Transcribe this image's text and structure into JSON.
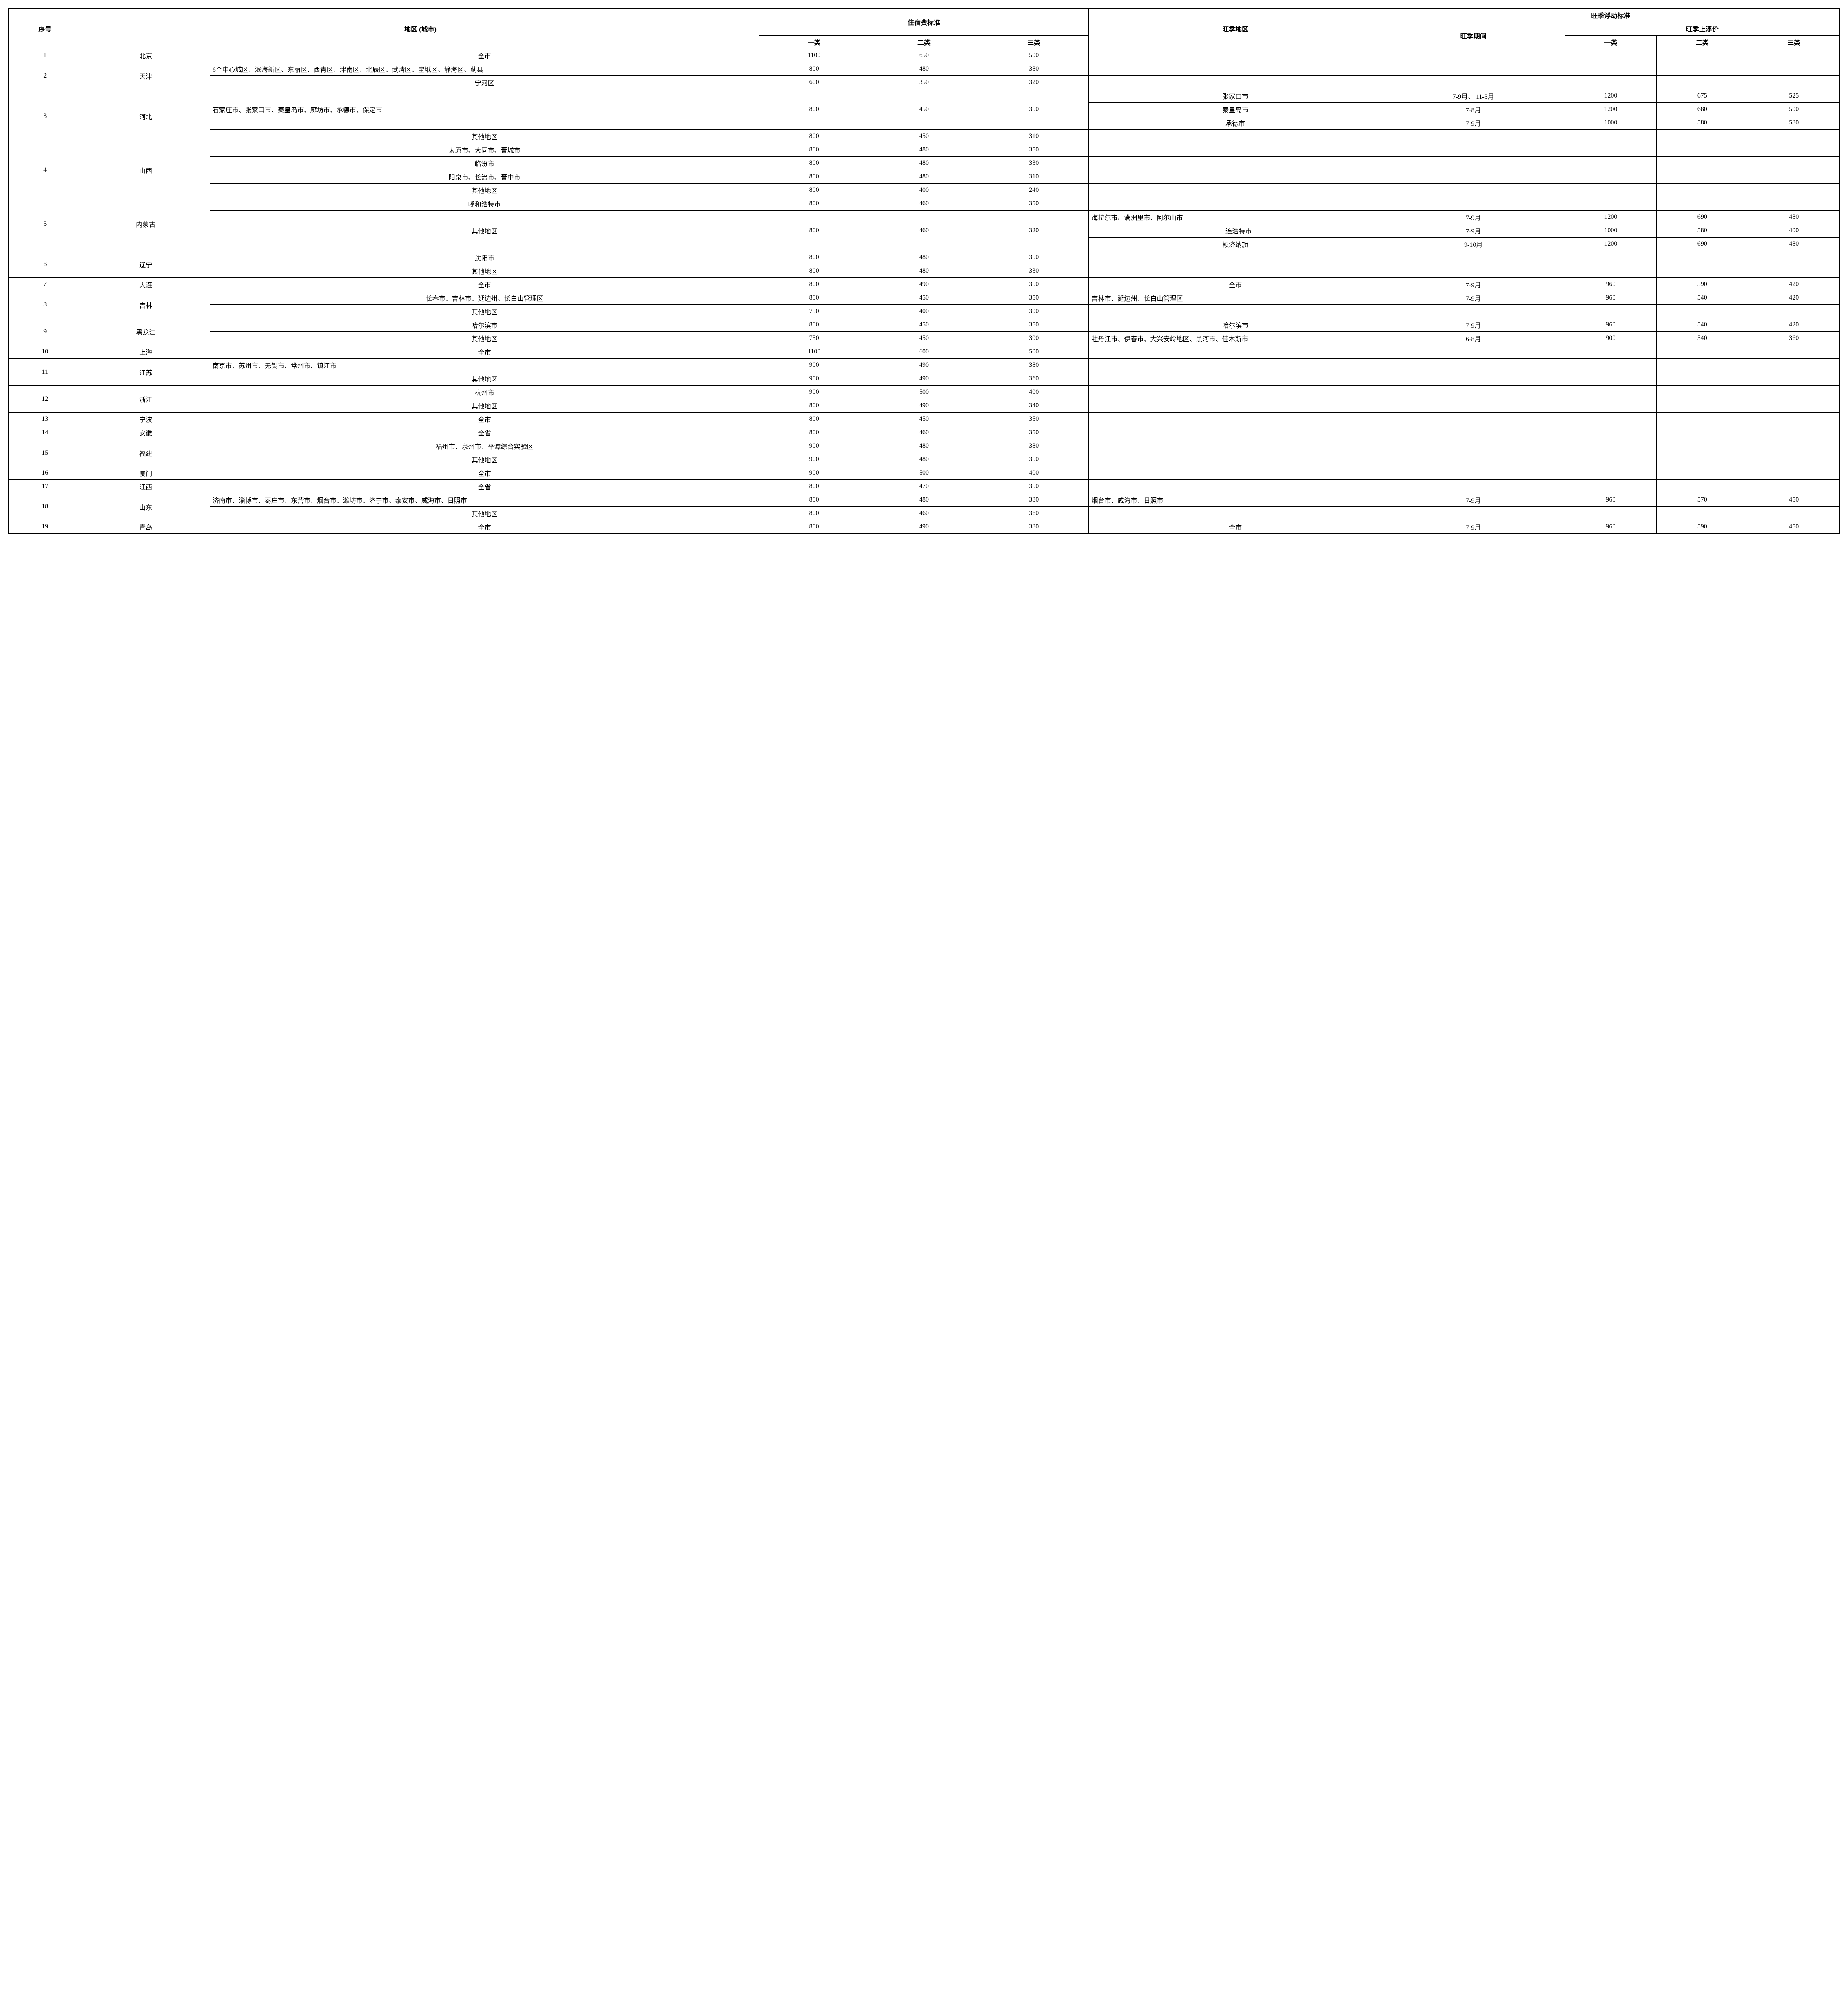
{
  "headers": {
    "seq": "序号",
    "region": "地区\n(城市)",
    "lodging": "住宿费标准",
    "c1": "一类",
    "c2": "二类",
    "c3": "三类",
    "peak_region": "旺季地区",
    "peak_standard": "旺季浮动标准",
    "peak_period": "旺季期间",
    "peak_price": "旺季上浮价",
    "p1": "一类",
    "p2": "二类",
    "p3": "三类"
  },
  "rows": {
    "r1": {
      "seq": "1",
      "prov": "北京",
      "city": "全市",
      "c1": "1100",
      "c2": "650",
      "c3": "500",
      "peak": "",
      "period": "",
      "p1": "",
      "p2": "",
      "p3": ""
    },
    "r2a": {
      "seq": "2",
      "prov": "天津",
      "city": "6个中心城区、滨海新区、东丽区、西青区、津南区、北辰区、武清区、宝坻区、静海区、蓟县",
      "c1": "800",
      "c2": "480",
      "c3": "380",
      "peak": "",
      "period": "",
      "p1": "",
      "p2": "",
      "p3": ""
    },
    "r2b": {
      "city": "宁河区",
      "c1": "600",
      "c2": "350",
      "c3": "320",
      "peak": "",
      "period": "",
      "p1": "",
      "p2": "",
      "p3": ""
    },
    "r3a": {
      "seq": "3",
      "prov": "河北",
      "city": "石家庄市、张家口市、秦皇岛市、廊坊市、承德市、保定市",
      "c1": "800",
      "c2": "450",
      "c3": "350",
      "peak": "张家口市",
      "period": "7-9月、\n11-3月",
      "p1": "1200",
      "p2": "675",
      "p3": "525"
    },
    "r3b": {
      "peak": "秦皇岛市",
      "period": "7-8月",
      "p1": "1200",
      "p2": "680",
      "p3": "500"
    },
    "r3c": {
      "peak": "承德市",
      "period": "7-9月",
      "p1": "1000",
      "p2": "580",
      "p3": "580"
    },
    "r3d": {
      "city": "其他地区",
      "c1": "800",
      "c2": "450",
      "c3": "310",
      "peak": "",
      "period": "",
      "p1": "",
      "p2": "",
      "p3": ""
    },
    "r4a": {
      "seq": "4",
      "prov": "山西",
      "city": "太原市、大同市、晋城市",
      "c1": "800",
      "c2": "480",
      "c3": "350",
      "peak": "",
      "period": "",
      "p1": "",
      "p2": "",
      "p3": ""
    },
    "r4b": {
      "city": "临汾市",
      "c1": "800",
      "c2": "480",
      "c3": "330",
      "peak": "",
      "period": "",
      "p1": "",
      "p2": "",
      "p3": ""
    },
    "r4c": {
      "city": "阳泉市、长治市、晋中市",
      "c1": "800",
      "c2": "480",
      "c3": "310",
      "peak": "",
      "period": "",
      "p1": "",
      "p2": "",
      "p3": ""
    },
    "r4d": {
      "city": "其他地区",
      "c1": "800",
      "c2": "400",
      "c3": "240",
      "peak": "",
      "period": "",
      "p1": "",
      "p2": "",
      "p3": ""
    },
    "r5a": {
      "seq": "5",
      "prov": "内蒙古",
      "city": "呼和浩特市",
      "c1": "800",
      "c2": "460",
      "c3": "350",
      "peak": "",
      "period": "",
      "p1": "",
      "p2": "",
      "p3": ""
    },
    "r5b": {
      "city": "其他地区",
      "c1": "800",
      "c2": "460",
      "c3": "320",
      "peak": "海拉尔市、满洲里市、阿尔山市",
      "period": "7-9月",
      "p1": "1200",
      "p2": "690",
      "p3": "480"
    },
    "r5c": {
      "peak": "二连浩特市",
      "period": "7-9月",
      "p1": "1000",
      "p2": "580",
      "p3": "400"
    },
    "r5d": {
      "peak": "额济纳旗",
      "period": "9-10月",
      "p1": "1200",
      "p2": "690",
      "p3": "480"
    },
    "r6a": {
      "seq": "6",
      "prov": "辽宁",
      "city": "沈阳市",
      "c1": "800",
      "c2": "480",
      "c3": "350",
      "peak": "",
      "period": "",
      "p1": "",
      "p2": "",
      "p3": ""
    },
    "r6b": {
      "city": "其他地区",
      "c1": "800",
      "c2": "480",
      "c3": "330",
      "peak": "",
      "period": "",
      "p1": "",
      "p2": "",
      "p3": ""
    },
    "r7": {
      "seq": "7",
      "prov": "大连",
      "city": "全市",
      "c1": "800",
      "c2": "490",
      "c3": "350",
      "peak": "全市",
      "period": "7-9月",
      "p1": "960",
      "p2": "590",
      "p3": "420"
    },
    "r8a": {
      "seq": "8",
      "prov": "吉林",
      "city": "长春市、吉林市、延边州、长白山管理区",
      "c1": "800",
      "c2": "450",
      "c3": "350",
      "peak": "吉林市、延边州、长白山管理区",
      "period": "7-9月",
      "p1": "960",
      "p2": "540",
      "p3": "420"
    },
    "r8b": {
      "city": "其他地区",
      "c1": "750",
      "c2": "400",
      "c3": "300",
      "peak": "",
      "period": "",
      "p1": "",
      "p2": "",
      "p3": ""
    },
    "r9a": {
      "seq": "9",
      "prov": "黑龙江",
      "city": "哈尔滨市",
      "c1": "800",
      "c2": "450",
      "c3": "350",
      "peak": "哈尔滨市",
      "period": "7-9月",
      "p1": "960",
      "p2": "540",
      "p3": "420"
    },
    "r9b": {
      "city": "其他地区",
      "c1": "750",
      "c2": "450",
      "c3": "300",
      "peak": "牡丹江市、伊春市、大兴安岭地区、黑河市、佳木斯市",
      "period": "6-8月",
      "p1": "900",
      "p2": "540",
      "p3": "360"
    },
    "r10": {
      "seq": "10",
      "prov": "上海",
      "city": "全市",
      "c1": "1100",
      "c2": "600",
      "c3": "500",
      "peak": "",
      "period": "",
      "p1": "",
      "p2": "",
      "p3": ""
    },
    "r11a": {
      "seq": "11",
      "prov": "江苏",
      "city": "南京市、苏州市、无锡市、常州市、镇江市",
      "c1": "900",
      "c2": "490",
      "c3": "380",
      "peak": "",
      "period": "",
      "p1": "",
      "p2": "",
      "p3": ""
    },
    "r11b": {
      "city": "其他地区",
      "c1": "900",
      "c2": "490",
      "c3": "360",
      "peak": "",
      "period": "",
      "p1": "",
      "p2": "",
      "p3": ""
    },
    "r12a": {
      "seq": "12",
      "prov": "浙江",
      "city": "杭州市",
      "c1": "900",
      "c2": "500",
      "c3": "400",
      "peak": "",
      "period": "",
      "p1": "",
      "p2": "",
      "p3": ""
    },
    "r12b": {
      "city": "其他地区",
      "c1": "800",
      "c2": "490",
      "c3": "340",
      "peak": "",
      "period": "",
      "p1": "",
      "p2": "",
      "p3": ""
    },
    "r13": {
      "seq": "13",
      "prov": "宁波",
      "city": "全市",
      "c1": "800",
      "c2": "450",
      "c3": "350",
      "peak": "",
      "period": "",
      "p1": "",
      "p2": "",
      "p3": ""
    },
    "r14": {
      "seq": "14",
      "prov": "安徽",
      "city": "全省",
      "c1": "800",
      "c2": "460",
      "c3": "350",
      "peak": "",
      "period": "",
      "p1": "",
      "p2": "",
      "p3": ""
    },
    "r15a": {
      "seq": "15",
      "prov": "福建",
      "city": "福州市、泉州市、平潭综合实验区",
      "c1": "900",
      "c2": "480",
      "c3": "380",
      "peak": "",
      "period": "",
      "p1": "",
      "p2": "",
      "p3": ""
    },
    "r15b": {
      "city": "其他地区",
      "c1": "900",
      "c2": "480",
      "c3": "350",
      "peak": "",
      "period": "",
      "p1": "",
      "p2": "",
      "p3": ""
    },
    "r16": {
      "seq": "16",
      "prov": "厦门",
      "city": "全市",
      "c1": "900",
      "c2": "500",
      "c3": "400",
      "peak": "",
      "period": "",
      "p1": "",
      "p2": "",
      "p3": ""
    },
    "r17": {
      "seq": "17",
      "prov": "江西",
      "city": "全省",
      "c1": "800",
      "c2": "470",
      "c3": "350",
      "peak": "",
      "period": "",
      "p1": "",
      "p2": "",
      "p3": ""
    },
    "r18a": {
      "seq": "18",
      "prov": "山东",
      "city": "济南市、淄博市、枣庄市、东营市、烟台市、潍坊市、济宁市、泰安市、威海市、日照市",
      "c1": "800",
      "c2": "480",
      "c3": "380",
      "peak": "烟台市、威海市、日照市",
      "period": "7-9月",
      "p1": "960",
      "p2": "570",
      "p3": "450"
    },
    "r18b": {
      "city": "其他地区",
      "c1": "800",
      "c2": "460",
      "c3": "360",
      "peak": "",
      "period": "",
      "p1": "",
      "p2": "",
      "p3": ""
    },
    "r19": {
      "seq": "19",
      "prov": "青岛",
      "city": "全市",
      "c1": "800",
      "c2": "490",
      "c3": "380",
      "peak": "全市",
      "period": "7-9月",
      "p1": "960",
      "p2": "590",
      "p3": "450"
    }
  }
}
